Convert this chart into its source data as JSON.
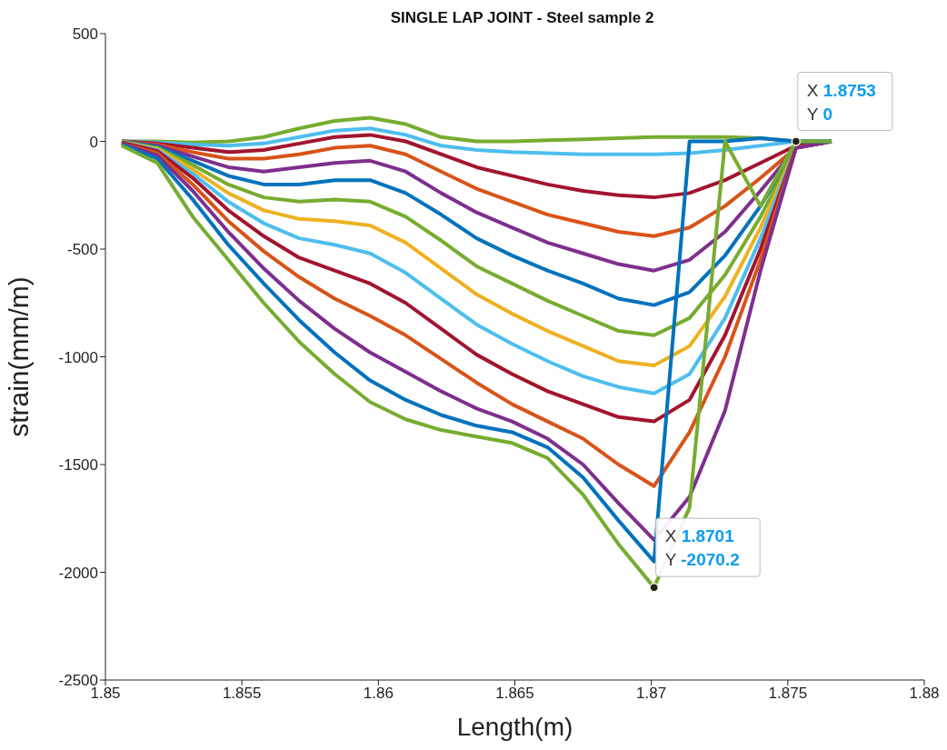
{
  "chart_data": {
    "type": "line",
    "title": "SINGLE LAP JOINT - Steel sample 2",
    "xlabel": "Length(m)",
    "ylabel": "strain(mm/m)",
    "x": [
      1.8506,
      1.8519,
      1.8532,
      1.8545,
      1.8558,
      1.8571,
      1.8584,
      1.8597,
      1.861,
      1.8623,
      1.8636,
      1.8649,
      1.8662,
      1.8675,
      1.8688,
      1.8701,
      1.8714,
      1.8727,
      1.874,
      1.8753,
      1.8766
    ],
    "xlim": [
      1.85,
      1.88
    ],
    "xticks": [
      1.85,
      1.855,
      1.86,
      1.865,
      1.87,
      1.875,
      1.88
    ],
    "ylim": [
      -2500,
      500
    ],
    "yticks": [
      -2500,
      -2000,
      -1500,
      -1000,
      -500,
      0,
      500
    ],
    "grid": false,
    "marker": "none",
    "line_style": "solid",
    "series": [
      {
        "color": "#77ac30",
        "values": [
          0,
          0,
          -5,
          0,
          20,
          60,
          95,
          110,
          80,
          20,
          0,
          0,
          5,
          10,
          15,
          20,
          20,
          20,
          15,
          0,
          0
        ]
      },
      {
        "color": "#4dbeee",
        "values": [
          0,
          -5,
          -15,
          -20,
          -10,
          20,
          50,
          60,
          30,
          -20,
          -40,
          -50,
          -55,
          -60,
          -60,
          -60,
          -55,
          -40,
          -20,
          0,
          0
        ]
      },
      {
        "color": "#a2142f",
        "values": [
          0,
          -10,
          -30,
          -50,
          -40,
          -10,
          20,
          30,
          0,
          -60,
          -120,
          -160,
          -200,
          -230,
          -250,
          -260,
          -240,
          -180,
          -100,
          -20,
          0
        ]
      },
      {
        "color": "#d95319",
        "values": [
          0,
          -15,
          -50,
          -80,
          -80,
          -60,
          -30,
          -20,
          -60,
          -140,
          -220,
          -280,
          -340,
          -380,
          -420,
          -440,
          -400,
          -300,
          -170,
          -30,
          0
        ]
      },
      {
        "color": "#7e2f8e",
        "values": [
          0,
          -20,
          -70,
          -120,
          -140,
          -120,
          -100,
          -90,
          -140,
          -240,
          -330,
          -400,
          -470,
          -520,
          -570,
          -600,
          -550,
          -420,
          -230,
          -30,
          0
        ]
      },
      {
        "color": "#0072bd",
        "values": [
          0,
          -25,
          -90,
          -160,
          -200,
          -200,
          -180,
          -180,
          -240,
          -340,
          -450,
          -530,
          -600,
          -660,
          -730,
          -760,
          -700,
          -530,
          -300,
          -30,
          0
        ]
      },
      {
        "color": "#77ac30",
        "values": [
          0,
          -30,
          -110,
          -200,
          -260,
          -280,
          -270,
          -280,
          -350,
          -460,
          -580,
          -660,
          -740,
          -810,
          -880,
          -900,
          -820,
          -620,
          -350,
          -30,
          0
        ]
      },
      {
        "color": "#edb120",
        "values": [
          -5,
          -35,
          -130,
          -240,
          -320,
          -360,
          -370,
          -390,
          -470,
          -590,
          -710,
          -800,
          -880,
          -950,
          -1020,
          -1040,
          -950,
          -720,
          -400,
          -30,
          0
        ]
      },
      {
        "color": "#4dbeee",
        "values": [
          -5,
          -40,
          -150,
          -280,
          -380,
          -450,
          -480,
          -520,
          -610,
          -730,
          -850,
          -940,
          -1020,
          -1090,
          -1140,
          -1170,
          -1080,
          -820,
          -450,
          -30,
          0
        ]
      },
      {
        "color": "#a2142f",
        "values": [
          -5,
          -45,
          -170,
          -320,
          -440,
          -540,
          -600,
          -660,
          -750,
          -870,
          -990,
          -1080,
          -1160,
          -1220,
          -1280,
          -1300,
          -1200,
          -900,
          -500,
          -30,
          0
        ]
      },
      {
        "color": "#d95319",
        "values": [
          -10,
          -55,
          -200,
          -370,
          -510,
          -630,
          -730,
          -810,
          -900,
          -1010,
          -1120,
          -1220,
          -1300,
          -1380,
          -1500,
          -1600,
          -1350,
          -1000,
          -550,
          -30,
          0
        ]
      },
      {
        "color": "#7e2f8e",
        "values": [
          -10,
          -65,
          -230,
          -420,
          -590,
          -740,
          -870,
          -980,
          -1070,
          -1160,
          -1240,
          -1300,
          -1380,
          -1500,
          -1680,
          -1850,
          -1650,
          -1250,
          -600,
          -30,
          0
        ]
      },
      {
        "color": "#0072bd",
        "values": [
          -15,
          -80,
          -270,
          -480,
          -660,
          -830,
          -980,
          -1110,
          -1200,
          -1270,
          -1320,
          -1350,
          -1420,
          -1560,
          -1760,
          -1950,
          0,
          0,
          15,
          0,
          0
        ]
      },
      {
        "color": "#77ac30",
        "values": [
          -20,
          -100,
          -350,
          -550,
          -750,
          -930,
          -1080,
          -1210,
          -1290,
          -1340,
          -1370,
          -1400,
          -1470,
          -1640,
          -1870,
          -2070.2,
          -1700,
          0,
          -300,
          0,
          0
        ]
      }
    ],
    "annotations": [
      {
        "text": "X 1.8753\nY 0",
        "x": 1.8753,
        "y": 0
      },
      {
        "text": "X 1.8701\nY -2070.2",
        "x": 1.8701,
        "y": -2070.2
      }
    ]
  }
}
